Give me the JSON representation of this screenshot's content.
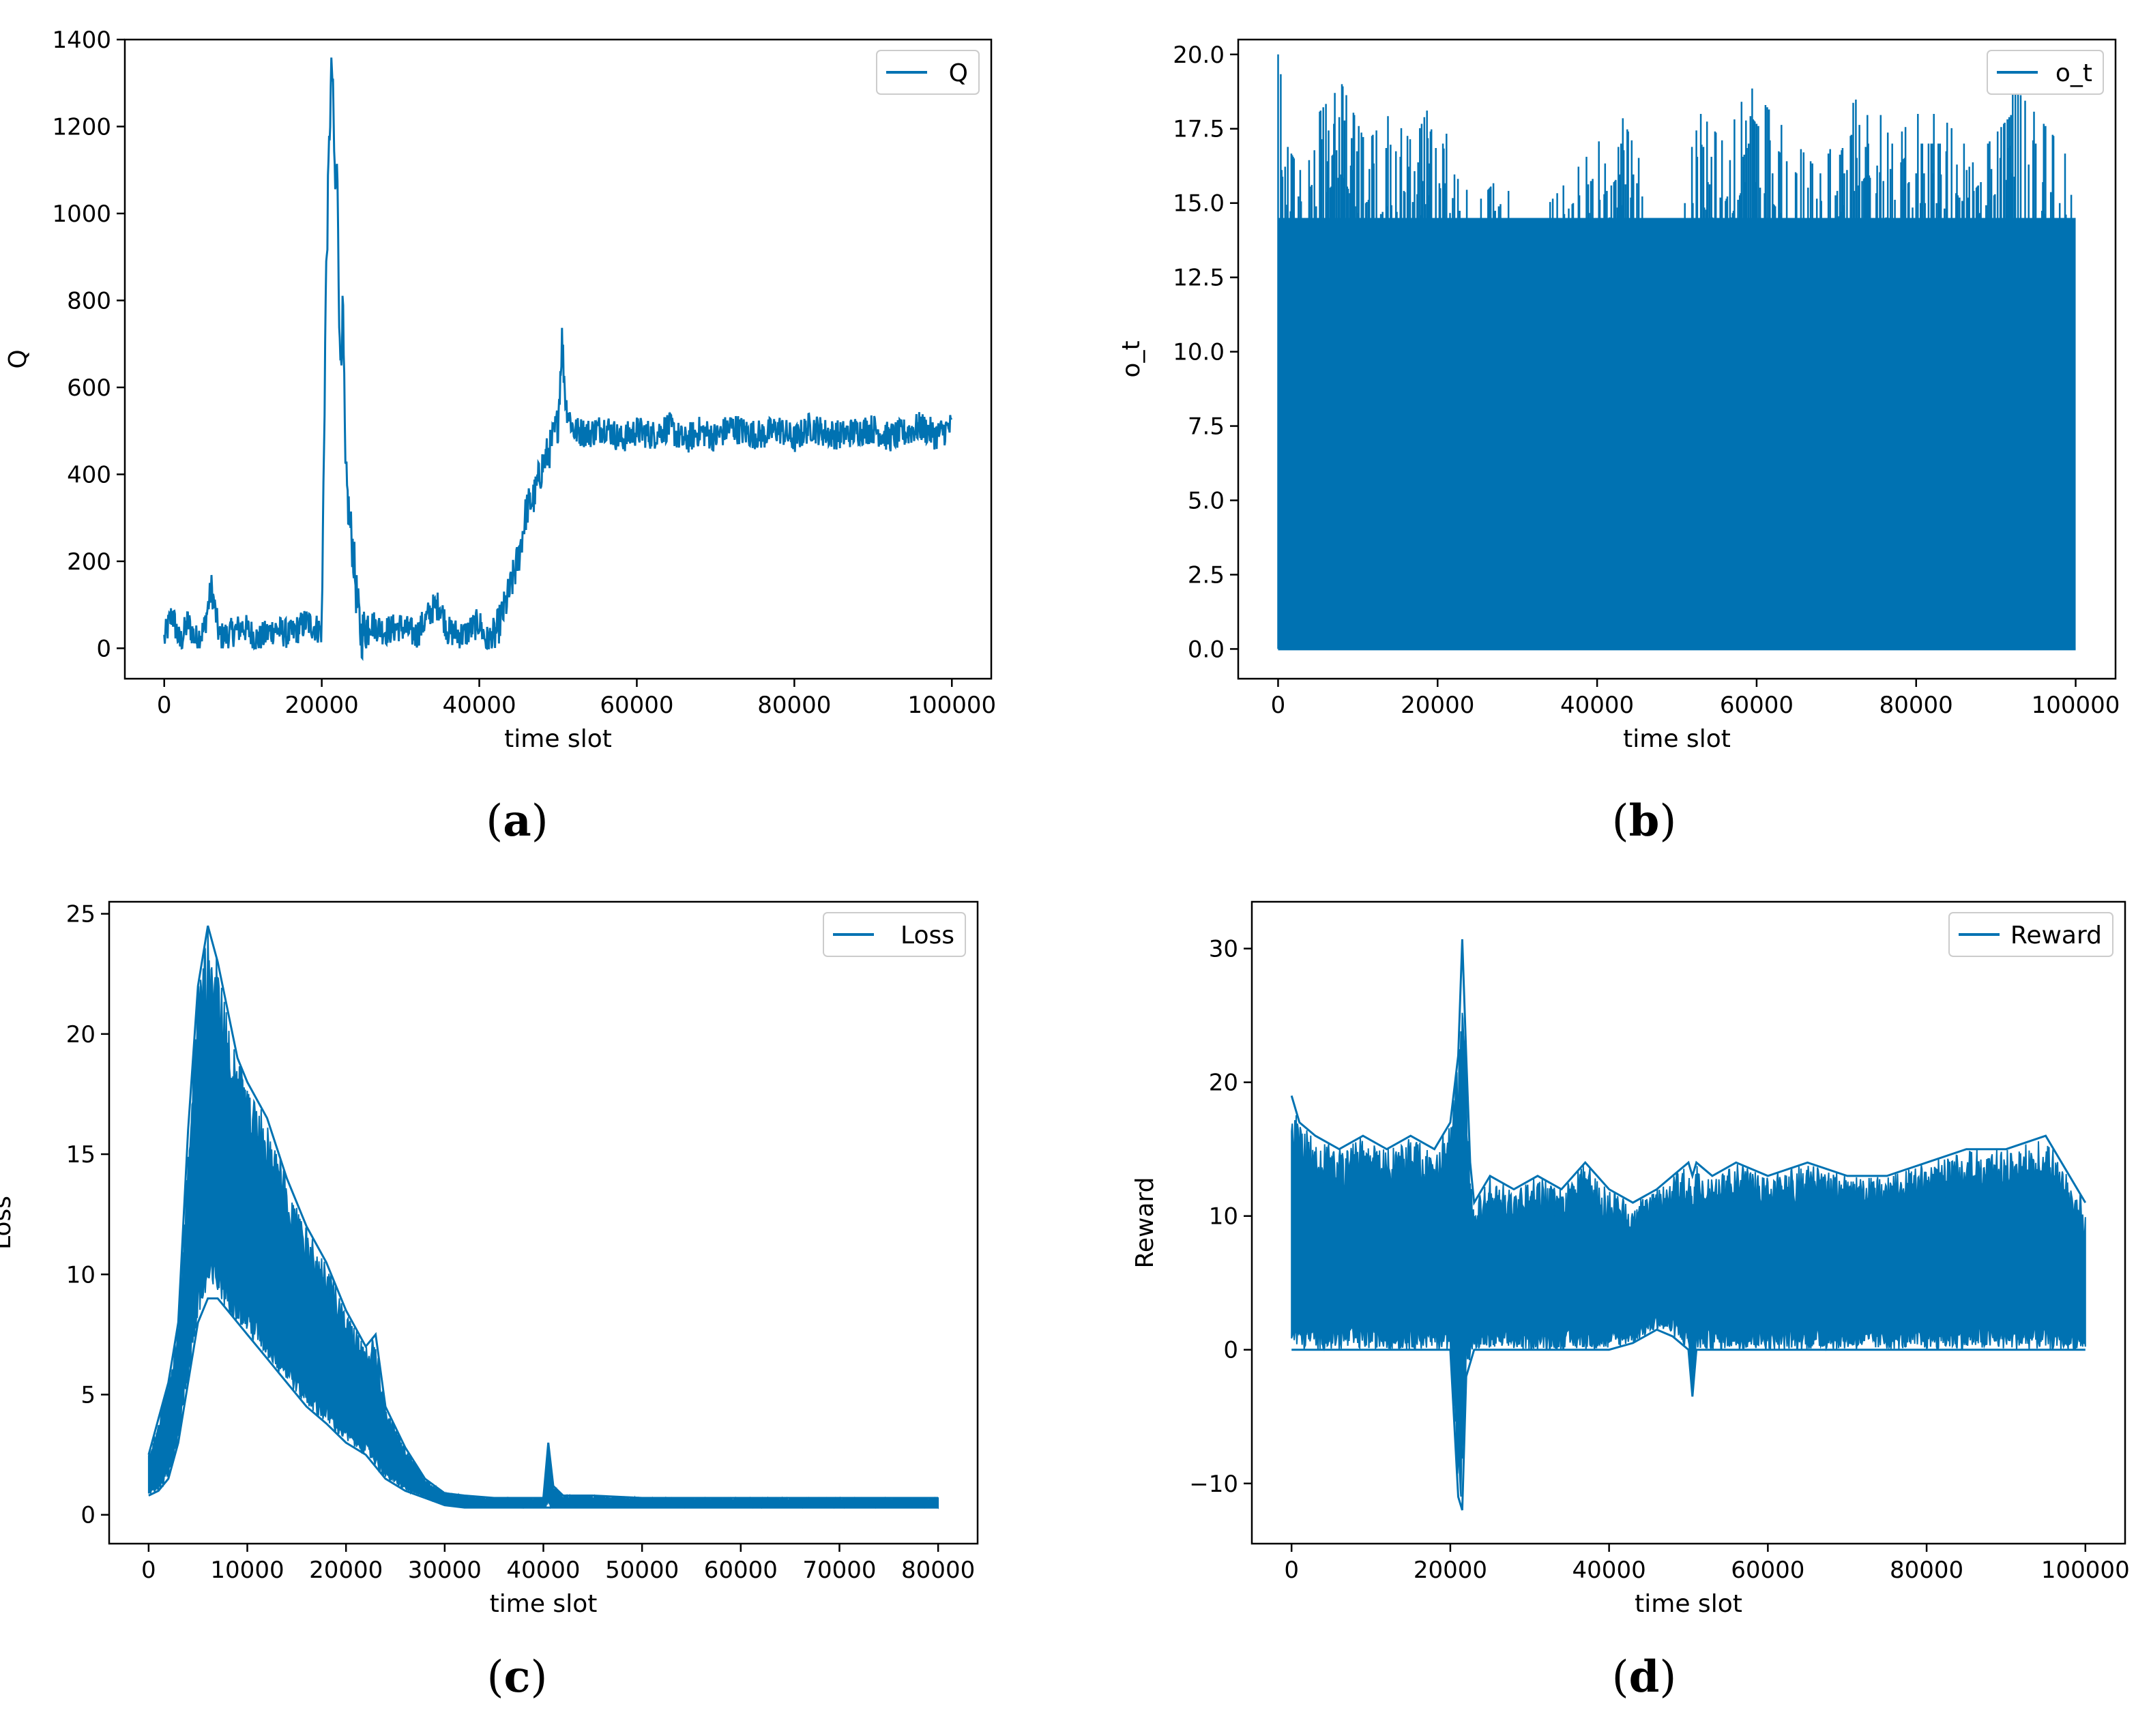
{
  "figure": {
    "line_color": "#0072b2",
    "captions": [
      "(a)",
      "(b)",
      "(c)",
      "(d)"
    ]
  },
  "chart_data": [
    {
      "id": "a",
      "type": "line",
      "caption": "(a)",
      "xlabel": "time slot",
      "ylabel": "Q",
      "xlim": [
        -5000,
        105000
      ],
      "ylim": [
        -70,
        1400
      ],
      "xticks": [
        0,
        20000,
        40000,
        60000,
        80000,
        100000
      ],
      "yticks": [
        0,
        200,
        400,
        600,
        800,
        1000,
        1200,
        1400
      ],
      "legend": {
        "label": "Q",
        "position": "top-right"
      },
      "series": [
        {
          "name": "Q",
          "x": [
            0,
            1000,
            2000,
            3000,
            4000,
            5000,
            6000,
            7000,
            8000,
            10000,
            12000,
            14000,
            16000,
            18000,
            20000,
            20500,
            21000,
            21300,
            21700,
            22000,
            22300,
            22700,
            23000,
            23500,
            24000,
            24500,
            25000,
            26000,
            28000,
            30000,
            32000,
            34000,
            35000,
            36000,
            38000,
            40000,
            41000,
            42000,
            43000,
            44000,
            45000,
            46000,
            47000,
            48000,
            49000,
            50000,
            50500,
            51000,
            52000,
            54000,
            56000,
            58000,
            60000,
            62000,
            64000,
            66000,
            68000,
            70000,
            72000,
            74000,
            76000,
            78000,
            80000,
            82000,
            84000,
            86000,
            88000,
            90000,
            92000,
            94000,
            96000,
            98000,
            100000
          ],
          "y": [
            20,
            80,
            10,
            60,
            20,
            40,
            140,
            25,
            30,
            50,
            20,
            45,
            30,
            60,
            40,
            800,
            1200,
            1350,
            1050,
            1100,
            650,
            770,
            400,
            300,
            220,
            100,
            30,
            60,
            40,
            50,
            30,
            90,
            100,
            40,
            30,
            60,
            10,
            30,
            80,
            140,
            210,
            320,
            350,
            420,
            460,
            520,
            710,
            560,
            500,
            495,
            510,
            480,
            500,
            490,
            510,
            475,
            500,
            485,
            510,
            495,
            490,
            505,
            480,
            510,
            495,
            490,
            500,
            505,
            485,
            495,
            510,
            490,
            510
          ]
        }
      ]
    },
    {
      "id": "b",
      "type": "line",
      "caption": "(b)",
      "xlabel": "time slot",
      "ylabel": "o_t",
      "xlim": [
        -5000,
        105000
      ],
      "ylim": [
        -1.0,
        20.5
      ],
      "xticks": [
        0,
        20000,
        40000,
        60000,
        80000,
        100000
      ],
      "yticks": [
        0.0,
        2.5,
        5.0,
        7.5,
        10.0,
        12.5,
        15.0,
        17.5,
        20.0
      ],
      "ytick_labels": [
        "0.0",
        "2.5",
        "5.0",
        "7.5",
        "10.0",
        "12.5",
        "15.0",
        "17.5",
        "20.0"
      ],
      "legend": {
        "label": "o_t",
        "position": "top-right"
      },
      "series": [
        {
          "name": "o_t",
          "min": 0,
          "band_top": 14.5,
          "x": [
            0,
            1000,
            3000,
            5000,
            8000,
            11000,
            14000,
            17000,
            20000,
            22000,
            25000,
            28000,
            31000,
            34000,
            37000,
            40000,
            43000,
            46000,
            48000,
            50000,
            53000,
            56000,
            59000,
            62000,
            65000,
            68000,
            71000,
            74000,
            77000,
            80000,
            83000,
            86000,
            89000,
            92000,
            95000,
            98000,
            100000
          ],
          "envelope": [
            20,
            18,
            17,
            18,
            19,
            17,
            18,
            17,
            19,
            16,
            15,
            16,
            14,
            15,
            16,
            17,
            18,
            16,
            12,
            15,
            18,
            17,
            19,
            18,
            17,
            16,
            18,
            19,
            17,
            18,
            18,
            17,
            18,
            19,
            18,
            17,
            16
          ]
        }
      ]
    },
    {
      "id": "c",
      "type": "line",
      "caption": "(c)",
      "xlabel": "time slot",
      "ylabel": "Loss",
      "xlim": [
        -4000,
        84000
      ],
      "ylim": [
        -1.2,
        25.5
      ],
      "xticks": [
        0,
        10000,
        20000,
        30000,
        40000,
        50000,
        60000,
        70000,
        80000
      ],
      "yticks": [
        0,
        5,
        10,
        15,
        20,
        25
      ],
      "legend": {
        "label": "Loss",
        "position": "top-right"
      },
      "series": [
        {
          "name": "Loss",
          "x": [
            0,
            1000,
            2000,
            3000,
            4000,
            5000,
            6000,
            7000,
            8000,
            9000,
            10000,
            12000,
            14000,
            16000,
            18000,
            20000,
            22000,
            23000,
            24000,
            26000,
            28000,
            30000,
            32000,
            35000,
            38000,
            40000,
            40500,
            41000,
            42000,
            45000,
            50000,
            55000,
            60000,
            65000,
            70000,
            75000,
            80000
          ],
          "lower": [
            0.8,
            1.0,
            1.5,
            3.0,
            5.5,
            8.0,
            9.0,
            9.0,
            8.5,
            8.0,
            7.5,
            6.5,
            5.5,
            4.5,
            3.8,
            3.0,
            2.5,
            2.0,
            1.5,
            1.0,
            0.7,
            0.4,
            0.3,
            0.3,
            0.3,
            0.3,
            0.3,
            0.3,
            0.3,
            0.3,
            0.3,
            0.3,
            0.3,
            0.3,
            0.3,
            0.3,
            0.3
          ],
          "upper": [
            2.5,
            4.0,
            5.5,
            8.0,
            16.0,
            22.0,
            24.5,
            23.0,
            21.0,
            19.0,
            18.0,
            16.5,
            14.0,
            12.0,
            10.5,
            8.5,
            7.0,
            7.5,
            4.5,
            2.8,
            1.5,
            0.9,
            0.8,
            0.7,
            0.7,
            0.7,
            3.0,
            1.2,
            0.8,
            0.8,
            0.7,
            0.7,
            0.7,
            0.7,
            0.7,
            0.7,
            0.7
          ]
        }
      ]
    },
    {
      "id": "d",
      "type": "line",
      "caption": "(d)",
      "xlabel": "time slot",
      "ylabel": "Reward",
      "xlim": [
        -5000,
        105000
      ],
      "ylim": [
        -14.5,
        33.5
      ],
      "xticks": [
        0,
        20000,
        40000,
        60000,
        80000,
        100000
      ],
      "yticks": [
        -10,
        0,
        10,
        20,
        30
      ],
      "ytick_labels": [
        "−10",
        "0",
        "10",
        "20",
        "30"
      ],
      "legend": {
        "label": "Reward",
        "position": "top-right"
      },
      "series": [
        {
          "name": "Reward",
          "x": [
            0,
            1000,
            3000,
            6000,
            9000,
            12000,
            15000,
            18000,
            20000,
            21000,
            21500,
            22000,
            22500,
            23000,
            25000,
            28000,
            31000,
            34000,
            37000,
            40000,
            43000,
            46000,
            48000,
            50000,
            50500,
            51000,
            53000,
            56000,
            60000,
            65000,
            70000,
            75000,
            80000,
            85000,
            90000,
            95000,
            100000
          ],
          "lower": [
            0,
            0,
            0,
            0,
            0,
            0,
            0,
            0,
            0,
            -11,
            -12,
            -2,
            -1,
            0,
            0,
            0,
            0,
            0,
            0,
            0,
            0.5,
            1.5,
            1,
            0,
            -3.5,
            0,
            0,
            0,
            0,
            0,
            0,
            0,
            0,
            0,
            0,
            0,
            0
          ],
          "upper": [
            19,
            17,
            16,
            15,
            16,
            15,
            16,
            15,
            17,
            22,
            30.7,
            22,
            14,
            11,
            13,
            12,
            13,
            12,
            14,
            12,
            11,
            12,
            13,
            14,
            13,
            14,
            13,
            14,
            13,
            14,
            13,
            13,
            14,
            15,
            15,
            16,
            11
          ]
        }
      ]
    }
  ]
}
